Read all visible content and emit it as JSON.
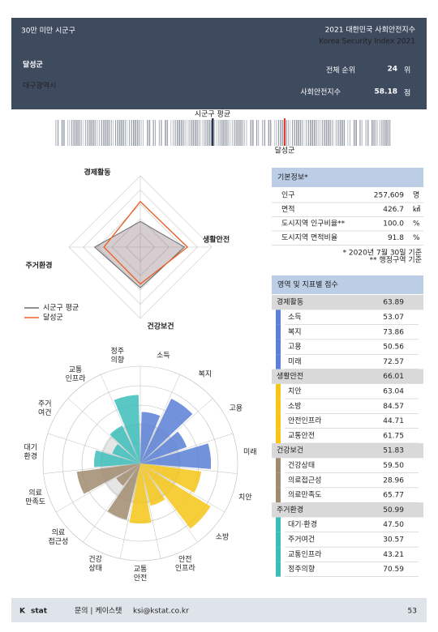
{
  "header": {
    "category": "30만 미만 시군구",
    "title": "2021 대한민국 사회안전지수",
    "subtitle": "Korea Security Index 2021",
    "region": "달성군",
    "province": "대구광역시",
    "rank_label": "전체 순위",
    "rank": 24,
    "rank_unit": "위",
    "index_label": "사회안전지수",
    "index": 58.18,
    "index_unit": "점"
  },
  "distribution": {
    "average_label": "시군구 평균",
    "region_label": "달성군"
  },
  "radar": {
    "legend": [
      "시군구 평균",
      "달성군"
    ],
    "colors": [
      "#6b6b6b",
      "#e8622a"
    ],
    "average": [
      36,
      62,
      57,
      64
    ],
    "rlim": [
      0,
      100
    ]
  },
  "polar": {
    "rlim": [
      0,
      100
    ],
    "labels": [
      [
        "소득"
      ],
      [
        "복지"
      ],
      [
        "고용"
      ],
      [
        "미래"
      ],
      [
        "치안"
      ],
      [
        "소방"
      ],
      [
        "안전",
        "인프라"
      ],
      [
        "교통",
        "안전"
      ],
      [
        "건강",
        "상태"
      ],
      [
        "의료",
        "접근성"
      ],
      [
        "의료",
        "만족도"
      ],
      [
        "대기",
        "환경"
      ],
      [
        "주거",
        "여건"
      ],
      [
        "교통",
        "인프라"
      ],
      [
        "정주",
        "의향"
      ]
    ]
  },
  "basic_info": {
    "title": "기본정보*",
    "rows": [
      [
        "인구",
        "257,609",
        "명"
      ],
      [
        "면적",
        "426.7",
        "㎢"
      ],
      [
        "도시지역 인구비율**",
        "100.0",
        "%"
      ],
      [
        "도시지역 면적비율",
        "91.8",
        "%"
      ]
    ],
    "notes": [
      "* 2020년 7월 30일 기준",
      "** 행정구역 기준"
    ]
  },
  "scores": {
    "title": "영역 및 지표별 점수",
    "sections": [
      {
        "name": "경제활동",
        "value": 63.89,
        "color": "#5b7fd6",
        "items": [
          {
            "name": "소득",
            "value": 53.07
          },
          {
            "name": "복지",
            "value": 73.86
          },
          {
            "name": "고용",
            "value": 50.56
          },
          {
            "name": "미래",
            "value": 72.57
          }
        ]
      },
      {
        "name": "생활안전",
        "value": 66.01,
        "color": "#f5c518",
        "items": [
          {
            "name": "치안",
            "value": 63.04
          },
          {
            "name": "소방",
            "value": 84.57
          },
          {
            "name": "안전인프라",
            "value": 44.71
          },
          {
            "name": "교통안전",
            "value": 61.75
          }
        ]
      },
      {
        "name": "건강보건",
        "value": 51.83,
        "color": "#a08b70",
        "items": [
          {
            "name": "건강상태",
            "value": 59.5,
            "value_label": "59.50"
          },
          {
            "name": "의료접근성",
            "value": 28.96
          },
          {
            "name": "의료만족도",
            "value": 65.77
          }
        ]
      },
      {
        "name": "주거환경",
        "value": 50.99,
        "color": "#3cbdb8",
        "items": [
          {
            "name": "대기·환경",
            "value": 47.5,
            "value_label": "47.50"
          },
          {
            "name": "주거여건",
            "value": 30.57
          },
          {
            "name": "교통인프라",
            "value": 43.21
          },
          {
            "name": "정주의향",
            "value": 70.59
          }
        ]
      }
    ]
  },
  "footer": {
    "logo_k": "K",
    "logo_rest": "stat",
    "contact": "문의 | 케이스탯",
    "email": "ksi@kstat.co.kr",
    "page": "53"
  }
}
